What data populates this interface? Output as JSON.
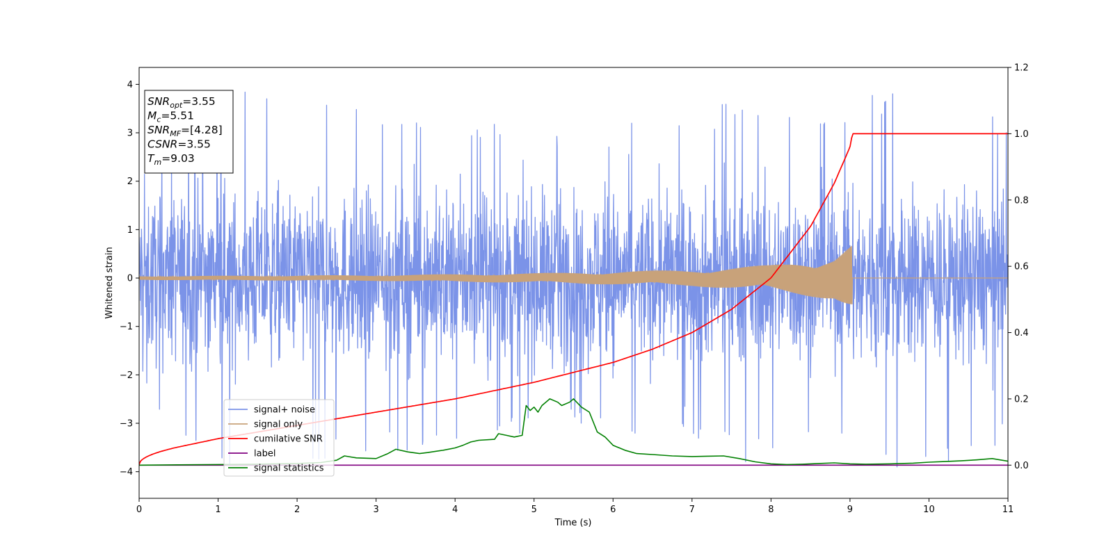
{
  "chart_data": {
    "type": "line",
    "xlabel": "Time (s)",
    "ylabel": "Whitened strain",
    "xlim": [
      0,
      11
    ],
    "ylim_left": [
      -4.55,
      4.35
    ],
    "ylim_right": [
      -0.1,
      1.2
    ],
    "x_ticks": [
      0,
      1,
      2,
      3,
      4,
      5,
      6,
      7,
      8,
      9,
      10,
      11
    ],
    "y_ticks_left": [
      -4,
      -3,
      -2,
      -1,
      0,
      1,
      2,
      3,
      4
    ],
    "y_ticks_right": [
      0.0,
      0.2,
      0.4,
      0.6,
      0.8,
      1.0,
      1.2
    ],
    "y_tick_labels_left": [
      "−4",
      "−3",
      "−2",
      "−1",
      "0",
      "1",
      "2",
      "3",
      "4"
    ],
    "y_tick_labels_right": [
      "0.0",
      "0.2",
      "0.4",
      "0.6",
      "0.8",
      "1.0",
      "1.2"
    ],
    "info_box": {
      "lines": [
        {
          "name": "SNR",
          "sub": "opt",
          "value": "=3.55"
        },
        {
          "name": "M",
          "sub": "c",
          "value": "=5.51"
        },
        {
          "name": "SNR",
          "sub": "MF",
          "value": "=[4.28]"
        },
        {
          "name": "CSNR",
          "sub": "",
          "value": "=3.55"
        },
        {
          "name": "T",
          "sub": "m",
          "value": "=9.03"
        }
      ]
    },
    "legend_position": "lower-left",
    "series": [
      {
        "name": "signal+ noise",
        "axis": "left",
        "color": "#7b93e8",
        "style": "noise",
        "amplitude_envelope": [
          [
            0.0,
            2.1
          ],
          [
            0.75,
            3.9
          ],
          [
            1.0,
            4.05
          ],
          [
            2.5,
            3.7
          ],
          [
            4.05,
            3.45
          ],
          [
            5.5,
            3.1
          ],
          [
            7.0,
            3.35
          ],
          [
            7.75,
            3.85
          ],
          [
            9.0,
            3.6
          ],
          [
            9.6,
            4.15
          ],
          [
            10.0,
            3.95
          ],
          [
            11.0,
            3.4
          ]
        ]
      },
      {
        "name": "signal only",
        "axis": "left",
        "color": "#c8a27a",
        "style": "chirp",
        "end_time": 9.03,
        "amplitude_envelope": [
          [
            0.0,
            0.04
          ],
          [
            3.0,
            0.06
          ],
          [
            5.0,
            0.1
          ],
          [
            7.0,
            0.17
          ],
          [
            8.0,
            0.27
          ],
          [
            8.8,
            0.45
          ],
          [
            9.03,
            0.72
          ]
        ]
      },
      {
        "name": "cumilative SNR",
        "axis": "right",
        "color": "#ff0000",
        "x": [
          0,
          0.5,
          1,
          1.5,
          2,
          2.5,
          3,
          3.5,
          4,
          4.5,
          5,
          5.5,
          6,
          6.5,
          7,
          7.5,
          8,
          8.5,
          8.8,
          9.0,
          9.03,
          11.0
        ],
        "y": [
          0.002,
          0.055,
          0.08,
          0.1,
          0.12,
          0.14,
          0.16,
          0.18,
          0.2,
          0.225,
          0.25,
          0.28,
          0.31,
          0.35,
          0.4,
          0.47,
          0.565,
          0.72,
          0.85,
          0.96,
          1.0,
          1.0
        ]
      },
      {
        "name": "label",
        "axis": "right",
        "color": "#800080",
        "x": [
          0,
          11
        ],
        "y": [
          0,
          0
        ]
      },
      {
        "name": "signal statistics",
        "axis": "right",
        "color": "#008000",
        "x": [
          0,
          0.5,
          1.0,
          1.5,
          2.0,
          2.3,
          2.5,
          2.6,
          2.75,
          3.0,
          3.15,
          3.25,
          3.4,
          3.55,
          3.65,
          3.85,
          4.0,
          4.1,
          4.2,
          4.3,
          4.5,
          4.55,
          4.65,
          4.75,
          4.85,
          4.9,
          4.95,
          5.0,
          5.05,
          5.1,
          5.2,
          5.3,
          5.35,
          5.45,
          5.5,
          5.6,
          5.7,
          5.8,
          5.9,
          6.0,
          6.15,
          6.3,
          6.5,
          6.75,
          7.0,
          7.2,
          7.4,
          7.6,
          7.8,
          8.0,
          8.2,
          8.4,
          8.6,
          8.8,
          9.0,
          9.2,
          9.5,
          9.8,
          10.0,
          10.2,
          10.4,
          10.6,
          10.8,
          11.0
        ],
        "y": [
          0.0,
          0.001,
          0.002,
          0.003,
          0.005,
          0.008,
          0.015,
          0.028,
          0.022,
          0.02,
          0.035,
          0.048,
          0.04,
          0.035,
          0.038,
          0.045,
          0.052,
          0.06,
          0.07,
          0.075,
          0.078,
          0.095,
          0.09,
          0.085,
          0.09,
          0.18,
          0.165,
          0.175,
          0.16,
          0.18,
          0.2,
          0.19,
          0.18,
          0.19,
          0.2,
          0.175,
          0.16,
          0.1,
          0.085,
          0.06,
          0.045,
          0.035,
          0.032,
          0.028,
          0.026,
          0.027,
          0.028,
          0.02,
          0.01,
          0.004,
          0.002,
          0.003,
          0.005,
          0.007,
          0.004,
          0.003,
          0.004,
          0.006,
          0.009,
          0.011,
          0.013,
          0.016,
          0.02,
          0.012
        ]
      }
    ]
  }
}
